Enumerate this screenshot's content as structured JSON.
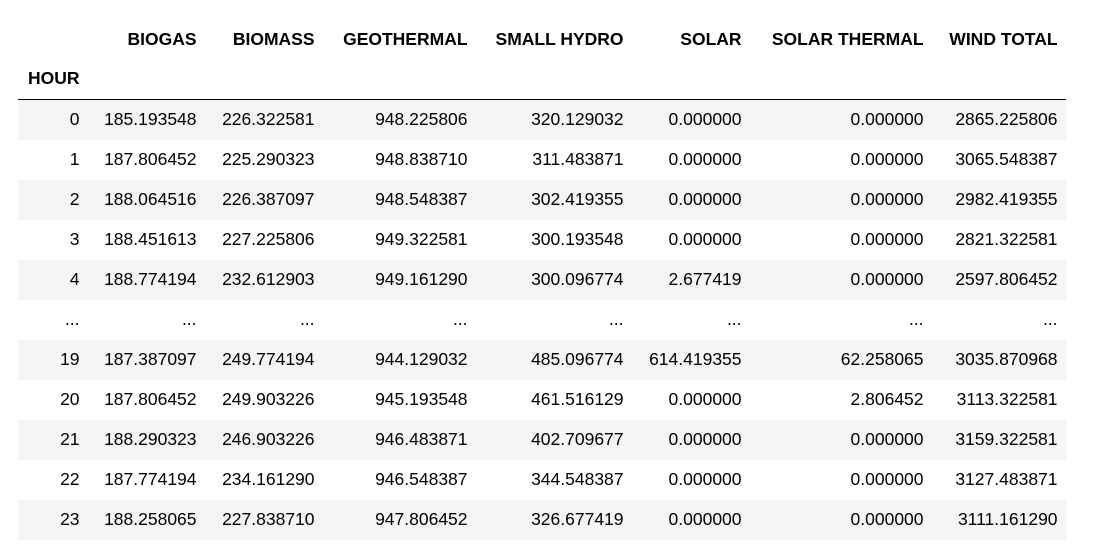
{
  "table": {
    "index_name": "HOUR",
    "columns": [
      "BIOGAS",
      "BIOMASS",
      "GEOTHERMAL",
      "SMALL HYDRO",
      "SOLAR",
      "SOLAR THERMAL",
      "WIND TOTAL"
    ],
    "rows": [
      {
        "index": "0",
        "cells": [
          "185.193548",
          "226.322581",
          "948.225806",
          "320.129032",
          "0.000000",
          "0.000000",
          "2865.225806"
        ]
      },
      {
        "index": "1",
        "cells": [
          "187.806452",
          "225.290323",
          "948.838710",
          "311.483871",
          "0.000000",
          "0.000000",
          "3065.548387"
        ]
      },
      {
        "index": "2",
        "cells": [
          "188.064516",
          "226.387097",
          "948.548387",
          "302.419355",
          "0.000000",
          "0.000000",
          "2982.419355"
        ]
      },
      {
        "index": "3",
        "cells": [
          "188.451613",
          "227.225806",
          "949.322581",
          "300.193548",
          "0.000000",
          "0.000000",
          "2821.322581"
        ]
      },
      {
        "index": "4",
        "cells": [
          "188.774194",
          "232.612903",
          "949.161290",
          "300.096774",
          "2.677419",
          "0.000000",
          "2597.806452"
        ]
      },
      {
        "index": "...",
        "cells": [
          "...",
          "...",
          "...",
          "...",
          "...",
          "...",
          "..."
        ]
      },
      {
        "index": "19",
        "cells": [
          "187.387097",
          "249.774194",
          "944.129032",
          "485.096774",
          "614.419355",
          "62.258065",
          "3035.870968"
        ]
      },
      {
        "index": "20",
        "cells": [
          "187.806452",
          "249.903226",
          "945.193548",
          "461.516129",
          "0.000000",
          "2.806452",
          "3113.322581"
        ]
      },
      {
        "index": "21",
        "cells": [
          "188.290323",
          "246.903226",
          "946.483871",
          "402.709677",
          "0.000000",
          "0.000000",
          "3159.322581"
        ]
      },
      {
        "index": "22",
        "cells": [
          "187.774194",
          "234.161290",
          "946.548387",
          "344.548387",
          "0.000000",
          "0.000000",
          "3127.483871"
        ]
      },
      {
        "index": "23",
        "cells": [
          "188.258065",
          "227.838710",
          "947.806452",
          "326.677419",
          "0.000000",
          "0.000000",
          "3111.161290"
        ]
      }
    ]
  }
}
